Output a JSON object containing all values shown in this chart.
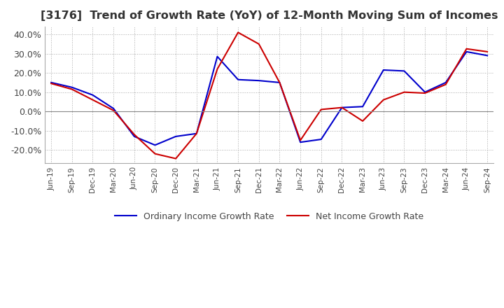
{
  "title": "[3176]  Trend of Growth Rate (YoY) of 12-Month Moving Sum of Incomes",
  "title_fontsize": 11.5,
  "ylim": [
    -27,
    44
  ],
  "yticks": [
    -20,
    -10,
    0,
    10,
    20,
    30,
    40
  ],
  "background_color": "#ffffff",
  "grid_color": "#aaaaaa",
  "ordinary_color": "#0000cc",
  "net_color": "#cc0000",
  "legend_labels": [
    "Ordinary Income Growth Rate",
    "Net Income Growth Rate"
  ],
  "x_labels": [
    "Jun-19",
    "Sep-19",
    "Dec-19",
    "Mar-20",
    "Jun-20",
    "Sep-20",
    "Dec-20",
    "Mar-21",
    "Jun-21",
    "Sep-21",
    "Dec-21",
    "Mar-22",
    "Jun-22",
    "Sep-22",
    "Dec-22",
    "Mar-23",
    "Jun-23",
    "Sep-23",
    "Dec-23",
    "Mar-24",
    "Jun-24",
    "Sep-24"
  ],
  "ordinary_income": [
    15.0,
    12.5,
    8.5,
    1.5,
    -13.0,
    -17.5,
    -13.0,
    -11.5,
    28.5,
    16.5,
    16.0,
    15.0,
    -16.0,
    -14.5,
    2.0,
    2.5,
    21.5,
    21.0,
    10.0,
    15.0,
    31.0,
    29.0
  ],
  "net_income": [
    14.5,
    11.5,
    6.0,
    0.5,
    -12.0,
    -22.0,
    -24.5,
    -11.5,
    22.0,
    41.0,
    35.0,
    15.0,
    -15.0,
    1.0,
    2.0,
    -5.0,
    6.0,
    10.0,
    9.5,
    14.0,
    32.5,
    31.0
  ]
}
